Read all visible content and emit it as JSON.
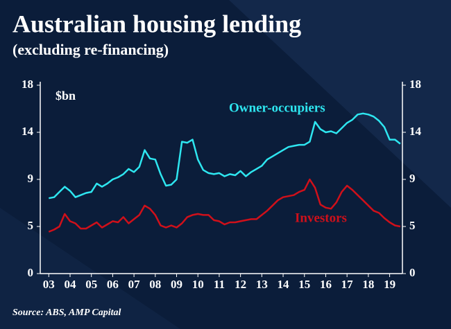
{
  "chart_data": {
    "type": "line",
    "title": "Australian housing lending",
    "subtitle": "(excluding re-financing)",
    "y_label": "$bn",
    "source": "Source: ABS, AMP Capital",
    "x": [
      3,
      3.25,
      3.5,
      3.75,
      4,
      4.25,
      4.5,
      4.75,
      5,
      5.25,
      5.5,
      5.75,
      6,
      6.25,
      6.5,
      6.75,
      7,
      7.25,
      7.5,
      7.75,
      8,
      8.25,
      8.5,
      8.75,
      9,
      9.25,
      9.5,
      9.75,
      10,
      10.25,
      10.5,
      10.75,
      11,
      11.25,
      11.5,
      11.75,
      12,
      12.25,
      12.5,
      12.75,
      13,
      13.25,
      13.5,
      13.75,
      14,
      14.25,
      14.5,
      14.75,
      15,
      15.25,
      15.5,
      15.75,
      16,
      16.25,
      16.5,
      16.75,
      17,
      17.25,
      17.5,
      17.75,
      18,
      18.25,
      18.5,
      18.75,
      19,
      19.25,
      19.5
    ],
    "series": [
      {
        "name": "Owner-occupiers",
        "color": "#2ee6f0",
        "values": [
          7.2,
          7.3,
          7.8,
          8.3,
          7.9,
          7.3,
          7.5,
          7.7,
          7.8,
          8.6,
          8.3,
          8.6,
          9.0,
          9.2,
          9.5,
          10.0,
          9.7,
          10.2,
          11.8,
          11.0,
          10.9,
          9.5,
          8.4,
          8.5,
          9.0,
          12.6,
          12.5,
          12.8,
          10.9,
          9.9,
          9.6,
          9.5,
          9.6,
          9.3,
          9.5,
          9.4,
          9.8,
          9.3,
          9.7,
          10.0,
          10.3,
          10.9,
          11.2,
          11.5,
          11.8,
          12.1,
          12.2,
          12.3,
          12.3,
          12.6,
          14.5,
          13.8,
          13.5,
          13.6,
          13.4,
          13.9,
          14.4,
          14.7,
          15.2,
          15.3,
          15.2,
          15.0,
          14.6,
          14.0,
          12.8,
          12.8,
          12.4
        ]
      },
      {
        "name": "Investors",
        "color": "#d0101a",
        "values": [
          4.0,
          4.2,
          4.5,
          5.7,
          5.0,
          4.8,
          4.3,
          4.3,
          4.6,
          4.9,
          4.4,
          4.7,
          5.0,
          4.9,
          5.4,
          4.8,
          5.2,
          5.6,
          6.5,
          6.2,
          5.6,
          4.6,
          4.4,
          4.6,
          4.4,
          4.8,
          5.4,
          5.6,
          5.7,
          5.6,
          5.6,
          5.1,
          5.0,
          4.7,
          4.9,
          4.9,
          5.0,
          5.1,
          5.2,
          5.2,
          5.6,
          6.0,
          6.5,
          7.0,
          7.3,
          7.4,
          7.5,
          7.8,
          8.0,
          9.0,
          8.2,
          6.6,
          6.3,
          6.2,
          6.8,
          7.8,
          8.4,
          8.0,
          7.5,
          7.0,
          6.5,
          6.0,
          5.8,
          5.3,
          4.9,
          4.6,
          4.5
        ]
      }
    ],
    "xlim": [
      2.6,
      19.6
    ],
    "xticks": [
      {
        "value": 3,
        "label": "03"
      },
      {
        "value": 4,
        "label": "04"
      },
      {
        "value": 5,
        "label": "05"
      },
      {
        "value": 6,
        "label": "06"
      },
      {
        "value": 7,
        "label": "07"
      },
      {
        "value": 8,
        "label": "08"
      },
      {
        "value": 9,
        "label": "09"
      },
      10,
      11,
      12,
      13,
      14,
      15,
      16,
      17,
      18,
      19
    ],
    "ylim": [
      0,
      18
    ],
    "yticks": [
      0,
      {
        "value": 4.5,
        "label": "5"
      },
      9,
      {
        "value": 13.5,
        "label": "14"
      },
      18
    ],
    "y2lim": [
      0,
      18
    ],
    "y2ticks": [
      0,
      {
        "value": 4.5,
        "label": "5"
      },
      9,
      {
        "value": 13.5,
        "label": "14"
      },
      18
    ]
  }
}
